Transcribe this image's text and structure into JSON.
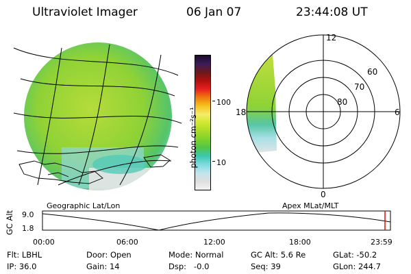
{
  "header": {
    "title": "Ultraviolet Imager",
    "date": "06 Jan 07",
    "time": "23:44:08 UT"
  },
  "colorbar": {
    "unit_label": "photon cm⁻²s⁻¹",
    "ticks": [
      "100",
      "10"
    ],
    "colors": [
      "#1c0a2e",
      "#3c1b5a",
      "#6b1a1a",
      "#b01010",
      "#e81e1e",
      "#f07a10",
      "#f6c21e",
      "#f4ec6a",
      "#d2e830",
      "#a9dc28",
      "#7ed22c",
      "#4fc64a",
      "#3cc7b0",
      "#7fdbe0",
      "#c2e5ec",
      "#dedede",
      "#f2f2f2"
    ]
  },
  "panels": {
    "left_caption": "Geographic Lat/Lon",
    "right_caption": "Apex MLat/MLT",
    "polar_labels": [
      "12",
      "18",
      "6",
      "0",
      "60",
      "70",
      "80"
    ]
  },
  "timeline": {
    "axis_label": "GC Alt",
    "y_ticks": [
      "9.0",
      "1.8"
    ],
    "x_ticks": [
      "00:00",
      "06:00",
      "12:00",
      "18:00",
      "23:59"
    ]
  },
  "status": {
    "flt": "Flt: LBHL",
    "ip": "IP: 36.0",
    "door": "Door: Open",
    "gain": "Gain: 14",
    "mode": "Mode: Normal",
    "dsp": "Dsp:   -0.0",
    "gc_alt": "GC Alt: 5.6 Re",
    "seq": "Seq: 39",
    "glat": "GLat: -50.2",
    "glon": "GLon: 244.7"
  }
}
